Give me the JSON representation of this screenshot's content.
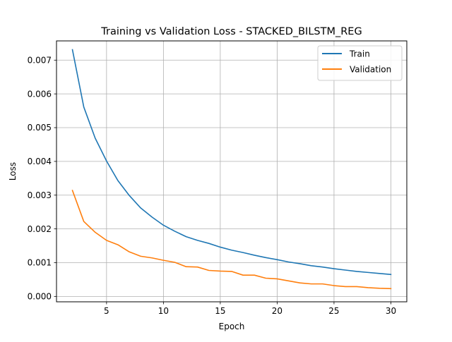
{
  "chart_data": {
    "type": "line",
    "title": "Training vs Validation Loss - STACKED_BILSTM_REG",
    "xlabel": "Epoch",
    "ylabel": "Loss",
    "xlim": [
      0.6,
      31.4
    ],
    "ylim": [
      -0.00016,
      0.00757
    ],
    "grid": true,
    "legend_position": "top-right",
    "x_ticks": [
      5,
      10,
      15,
      20,
      25,
      30
    ],
    "x_tick_labels": [
      "5",
      "10",
      "15",
      "20",
      "25",
      "30"
    ],
    "y_ticks": [
      0,
      0.001,
      0.002,
      0.003,
      0.004,
      0.005,
      0.006,
      0.007
    ],
    "y_tick_labels": [
      "0.000",
      "0.001",
      "0.002",
      "0.003",
      "0.004",
      "0.005",
      "0.006",
      "0.007"
    ],
    "x": [
      2,
      3,
      4,
      5,
      6,
      7,
      8,
      9,
      10,
      11,
      12,
      13,
      14,
      15,
      16,
      17,
      18,
      19,
      20,
      21,
      22,
      23,
      24,
      25,
      26,
      27,
      28,
      29,
      30
    ],
    "series": [
      {
        "name": "Train",
        "color": "#1f77b4",
        "values": [
          0.00731,
          0.00561,
          0.00469,
          0.00401,
          0.00343,
          0.00299,
          0.00262,
          0.00235,
          0.00211,
          0.00193,
          0.00177,
          0.00166,
          0.00157,
          0.00146,
          0.00137,
          0.0013,
          0.00122,
          0.00115,
          0.00109,
          0.00102,
          0.00097,
          0.00091,
          0.00087,
          0.00082,
          0.00078,
          0.00074,
          0.00071,
          0.00068,
          0.00065
        ]
      },
      {
        "name": "Validation",
        "color": "#ff7f0e",
        "values": [
          0.00314,
          0.00222,
          0.0019,
          0.00166,
          0.00153,
          0.00132,
          0.00119,
          0.00114,
          0.00107,
          0.00101,
          0.00088,
          0.00087,
          0.00077,
          0.00075,
          0.00074,
          0.00063,
          0.00063,
          0.00054,
          0.00052,
          0.00046,
          0.0004,
          0.00037,
          0.00037,
          0.00032,
          0.00029,
          0.00029,
          0.00026,
          0.00024,
          0.00023
        ]
      }
    ]
  }
}
